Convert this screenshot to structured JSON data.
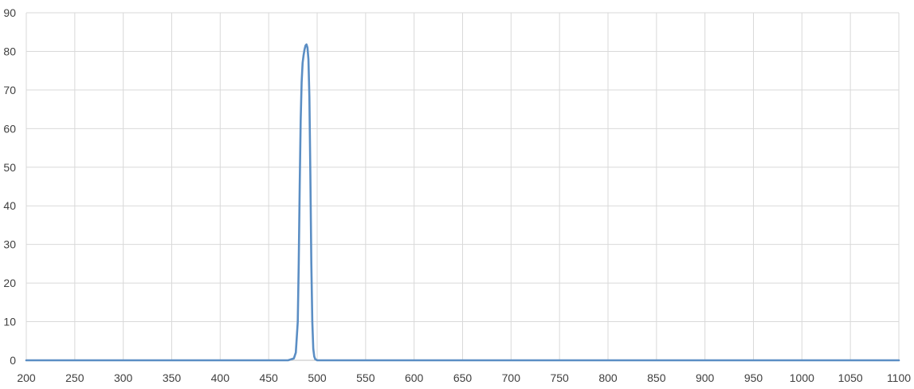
{
  "chart_data": {
    "type": "line",
    "title": "",
    "xlabel": "",
    "ylabel": "",
    "xlim": [
      200,
      1100
    ],
    "ylim": [
      0,
      90
    ],
    "grid": true,
    "legend": "none",
    "x_ticks": [
      "200",
      "250",
      "300",
      "350",
      "400",
      "450",
      "500",
      "550",
      "600",
      "650",
      "700",
      "750",
      "800",
      "850",
      "900",
      "950",
      "1000",
      "1050",
      "1100"
    ],
    "y_ticks": [
      "0",
      "10",
      "20",
      "30",
      "40",
      "50",
      "60",
      "70",
      "80",
      "90"
    ],
    "series": [
      {
        "color": "#5b8ec4",
        "x": [
          200,
          470,
          476,
          478,
          480,
          481,
          482,
          483,
          484,
          485,
          486,
          487,
          488,
          489,
          490,
          491,
          492,
          493,
          494,
          495,
          496,
          497,
          498,
          500,
          520,
          1100
        ],
        "y": [
          0,
          0,
          0.5,
          2,
          10,
          25,
          45,
          62,
          72,
          77,
          79,
          80.5,
          81.5,
          81.8,
          81,
          78,
          68,
          48,
          25,
          10,
          3,
          1,
          0.3,
          0,
          0,
          0
        ]
      }
    ]
  }
}
